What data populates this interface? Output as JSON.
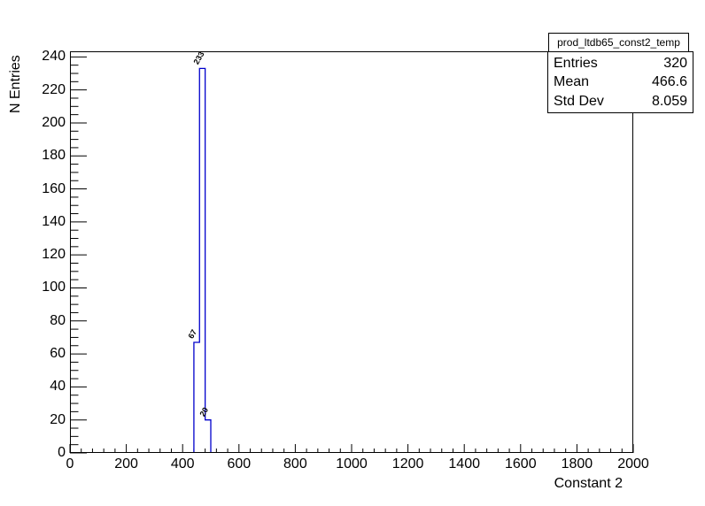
{
  "chart_data": {
    "type": "bar",
    "style": "root-histogram-step-outline",
    "title": "prod_ltdb65_const2_temp",
    "xlabel": "Constant 2",
    "ylabel": "N Entries",
    "xlim": [
      0,
      2000
    ],
    "ylim": [
      0,
      243.4
    ],
    "x_ticks": {
      "major_step": 200,
      "minor_step": 40,
      "label_values": [
        0,
        200,
        400,
        600,
        800,
        1000,
        1200,
        1400,
        1600,
        1800,
        2000
      ]
    },
    "y_ticks": {
      "major_step": 20,
      "minor_step": 5,
      "label_max": 240,
      "label_values": [
        0,
        20,
        40,
        60,
        80,
        100,
        120,
        140,
        160,
        180,
        200,
        220,
        240
      ]
    },
    "bins": [
      {
        "x_low": 440,
        "x_high": 460,
        "count": 67,
        "label": "67"
      },
      {
        "x_low": 460,
        "x_high": 480,
        "count": 233,
        "label": "233"
      },
      {
        "x_low": 480,
        "x_high": 500,
        "count": 20,
        "label": "20"
      }
    ],
    "line_color": "#0000cc",
    "axis_color": "#000000",
    "grid": false,
    "legend": null
  },
  "stats_box": {
    "rows": [
      {
        "label": "Entries",
        "value": "320"
      },
      {
        "label": "Mean",
        "value": "466.6"
      },
      {
        "label": "Std Dev",
        "value": "8.059"
      }
    ]
  }
}
